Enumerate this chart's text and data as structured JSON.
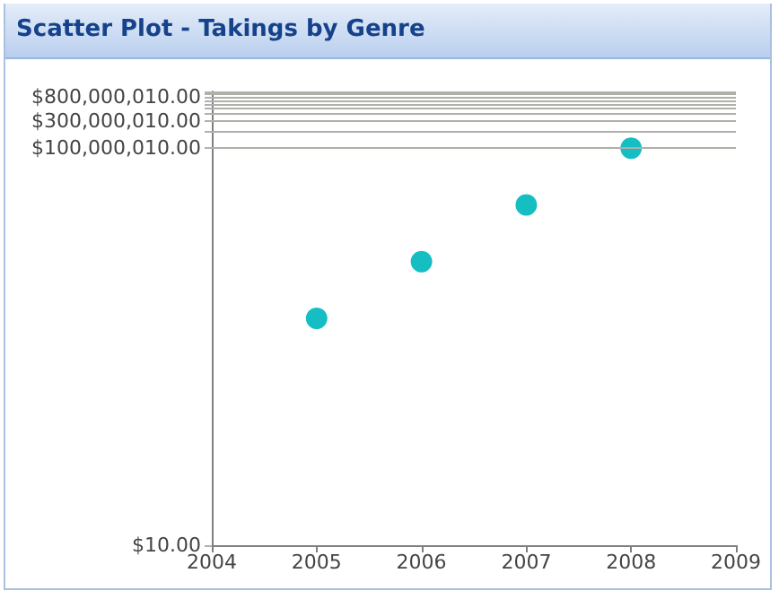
{
  "chart_data": {
    "type": "scatter",
    "title": "Scatter Plot - Takings by Genre",
    "x": [
      2005,
      2006,
      2007,
      2008
    ],
    "series": [
      {
        "color": "#14bec2",
        "values": [
          100000,
          1000000,
          10000000,
          100000000
        ]
      }
    ],
    "xlim": [
      2004,
      2009
    ],
    "xticks": [
      2004,
      2005,
      2006,
      2007,
      2008,
      2009
    ],
    "ylim": [
      10,
      1000000010
    ],
    "yticks": [
      {
        "value": 10,
        "label": "$10.00"
      },
      {
        "value": 100000010,
        "label": "$100,000,010.00"
      },
      {
        "value": 200000010,
        "label": null
      },
      {
        "value": 300000010,
        "label": "$300,000,010.00"
      },
      {
        "value": 400000010,
        "label": null
      },
      {
        "value": 500000010,
        "label": null
      },
      {
        "value": 600000010,
        "label": null
      },
      {
        "value": 700000010,
        "label": null
      },
      {
        "value": 800000010,
        "label": "$800,000,010.00"
      },
      {
        "value": 900000010,
        "label": null
      },
      {
        "value": 1000000010,
        "label": null
      }
    ],
    "log": true,
    "grid": "y",
    "marker": "circle"
  }
}
